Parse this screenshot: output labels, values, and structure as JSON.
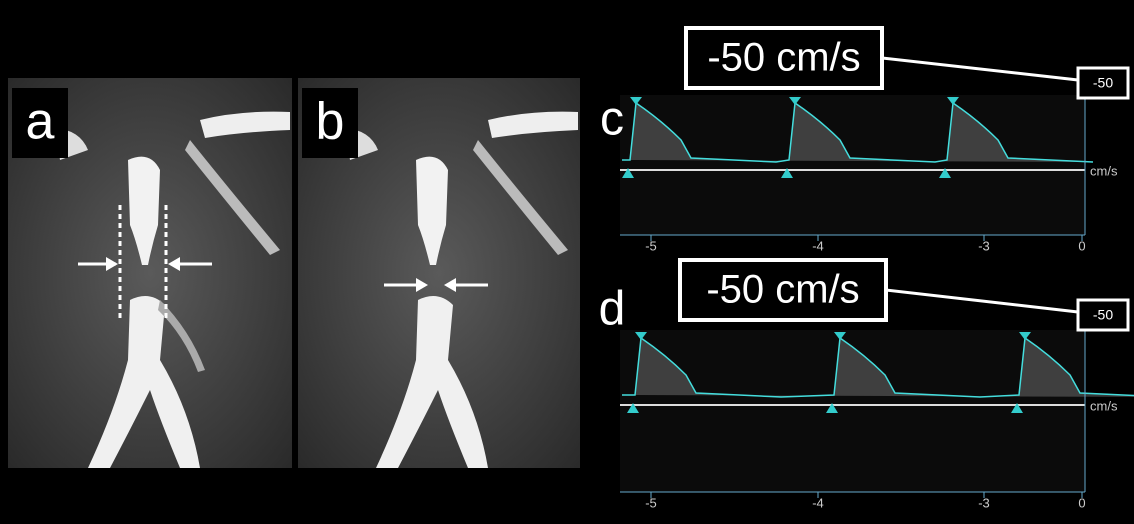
{
  "panels": [
    {
      "label": "a"
    },
    {
      "label": "b"
    }
  ],
  "doppler": [
    {
      "label": "c",
      "callout": "-50 cm/s",
      "scale_label": "-50",
      "unit": "cm/s",
      "x_ticks": [
        -5,
        -4,
        -3,
        0
      ]
    },
    {
      "label": "d",
      "callout": "-50 cm/s",
      "scale_label": "-50",
      "unit": "cm/s",
      "x_ticks": [
        -5,
        -4,
        -3,
        0
      ]
    }
  ]
}
